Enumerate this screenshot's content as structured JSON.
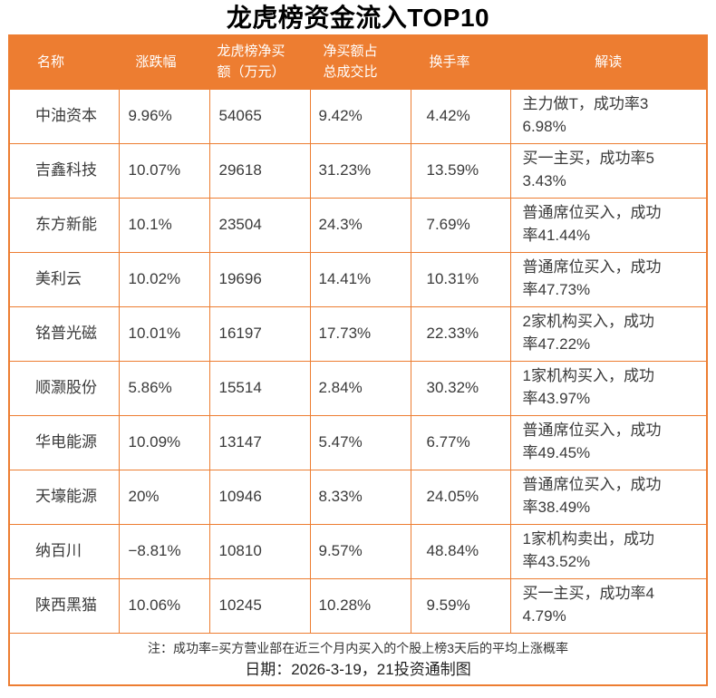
{
  "title": "龙虎榜资金流入TOP10",
  "colors": {
    "accent_orange": "#ED7D31",
    "header_text": "#FFFFFF",
    "body_text": "#3A3A3A"
  },
  "table": {
    "display_headers": [
      "名称",
      "涨跌幅",
      "龙虎榜净买\n额（万元）",
      "净买额占\n总成交比",
      "换手率",
      "解读"
    ],
    "display_rows": [
      [
        "中油资本",
        "9.96%",
        "54065",
        "9.42%",
        "4.42%",
        "主力做T，成功率3\n6.98%"
      ],
      [
        "吉鑫科技",
        "10.07%",
        "29618",
        "31.23%",
        "13.59%",
        "买一主买，成功率5\n3.43%"
      ],
      [
        "东方新能",
        "10.1%",
        "23504",
        "24.3%",
        "7.69%",
        "普通席位买入，成功\n率41.44%"
      ],
      [
        "美利云",
        "10.02%",
        "19696",
        "14.41%",
        "10.31%",
        "普通席位买入，成功\n率47.73%"
      ],
      [
        "铭普光磁",
        "10.01%",
        "16197",
        "17.73%",
        "22.33%",
        "2家机构买入，成功\n率47.22%"
      ],
      [
        "顺灏股份",
        "5.86%",
        "15514",
        "2.84%",
        "30.32%",
        "1家机构买入，成功\n率43.97%"
      ],
      [
        "华电能源",
        "10.09%",
        "13147",
        "5.47%",
        "6.77%",
        "普通席位买入，成功\n率49.45%"
      ],
      [
        "天壕能源",
        "20%",
        "10946",
        "8.33%",
        "24.05%",
        "普通席位买入，成功\n率38.49%"
      ],
      [
        "纳百川",
        "−8.81%",
        "10810",
        "9.57%",
        "48.84%",
        "1家机构卖出，成功\n率43.52%"
      ],
      [
        "陕西黑猫",
        "10.06%",
        "10245",
        "10.28%",
        "9.59%",
        "买一主买，成功率4\n4.79%"
      ]
    ]
  },
  "footer": {
    "note": "注：成功率=买方营业部在近三个月内买入的个股上榜3天后的平均上涨概率",
    "date_line": "日期：2026-3-19，21投资通制图"
  },
  "chart_data": {
    "type": "table",
    "title": "龙虎榜资金流入TOP10",
    "columns": [
      "名称",
      "涨跌幅",
      "龙虎榜净买额（万元）",
      "净买额占总成交比",
      "换手率",
      "解读"
    ],
    "rows": [
      {
        "name": "中油资本",
        "change_pct": "9.96%",
        "net_buy_wan": 54065,
        "net_buy_to_turnover": "9.42%",
        "turnover_rate": "4.42%",
        "interpretation": "主力做T，成功率36.98%"
      },
      {
        "name": "吉鑫科技",
        "change_pct": "10.07%",
        "net_buy_wan": 29618,
        "net_buy_to_turnover": "31.23%",
        "turnover_rate": "13.59%",
        "interpretation": "买一主买，成功率53.43%"
      },
      {
        "name": "东方新能",
        "change_pct": "10.1%",
        "net_buy_wan": 23504,
        "net_buy_to_turnover": "24.3%",
        "turnover_rate": "7.69%",
        "interpretation": "普通席位买入，成功率41.44%"
      },
      {
        "name": "美利云",
        "change_pct": "10.02%",
        "net_buy_wan": 19696,
        "net_buy_to_turnover": "14.41%",
        "turnover_rate": "10.31%",
        "interpretation": "普通席位买入，成功率47.73%"
      },
      {
        "name": "铭普光磁",
        "change_pct": "10.01%",
        "net_buy_wan": 16197,
        "net_buy_to_turnover": "17.73%",
        "turnover_rate": "22.33%",
        "interpretation": "2家机构买入，成功率47.22%"
      },
      {
        "name": "顺灏股份",
        "change_pct": "5.86%",
        "net_buy_wan": 15514,
        "net_buy_to_turnover": "2.84%",
        "turnover_rate": "30.32%",
        "interpretation": "1家机构买入，成功率43.97%"
      },
      {
        "name": "华电能源",
        "change_pct": "10.09%",
        "net_buy_wan": 13147,
        "net_buy_to_turnover": "5.47%",
        "turnover_rate": "6.77%",
        "interpretation": "普通席位买入，成功率49.45%"
      },
      {
        "name": "天壕能源",
        "change_pct": "20%",
        "net_buy_wan": 10946,
        "net_buy_to_turnover": "8.33%",
        "turnover_rate": "24.05%",
        "interpretation": "普通席位买入，成功率38.49%"
      },
      {
        "name": "纳百川",
        "change_pct": "-8.81%",
        "net_buy_wan": 10810,
        "net_buy_to_turnover": "9.57%",
        "turnover_rate": "48.84%",
        "interpretation": "1家机构卖出，成功率43.52%"
      },
      {
        "name": "陕西黑猫",
        "change_pct": "10.06%",
        "net_buy_wan": 10245,
        "net_buy_to_turnover": "10.28%",
        "turnover_rate": "9.59%",
        "interpretation": "买一主买，成功率44.79%"
      }
    ],
    "note": "注：成功率=买方营业部在近三个月内买入的个股上榜3天后的平均上涨概率",
    "date": "2026-3-19",
    "source": "21投资通制图"
  }
}
